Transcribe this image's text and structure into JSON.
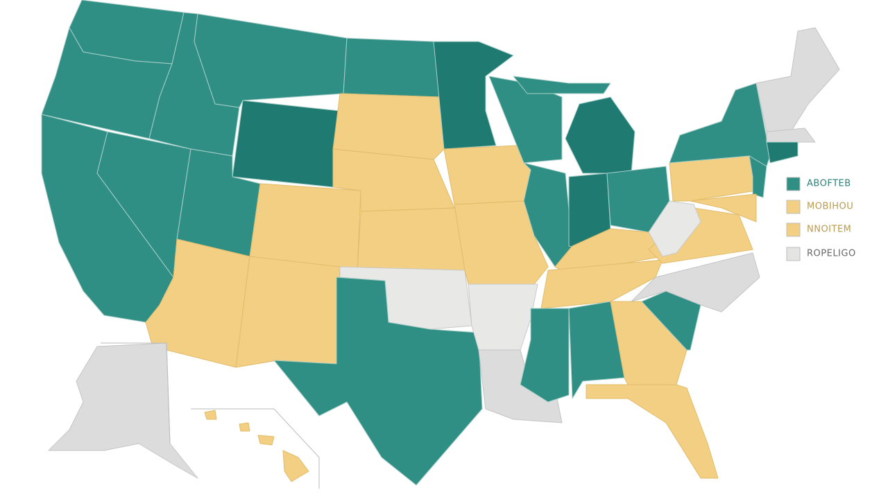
{
  "legend": {
    "items": [
      {
        "label": "ABOFTEB",
        "color": "#2f8f85"
      },
      {
        "label": "MOBIHOU",
        "color": "#f2cf83"
      },
      {
        "label": "NNOITEM",
        "color": "#f2cf83"
      },
      {
        "label": "ROPELIGO",
        "color": "#e4e4e2"
      }
    ]
  }
}
